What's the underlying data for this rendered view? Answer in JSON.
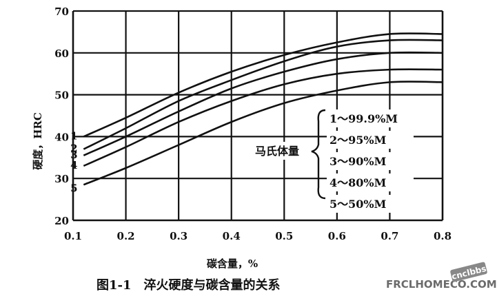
{
  "chart_data": {
    "type": "line",
    "xlabel": "碳含量，%",
    "ylabel": "硬度，HRC",
    "xlim": [
      0.1,
      0.8
    ],
    "ylim": [
      20,
      70
    ],
    "x_ticks": [
      "0.1",
      "0.2",
      "0.3",
      "0.4",
      "0.5",
      "0.6",
      "0.7",
      "0.8"
    ],
    "y_ticks": [
      "20",
      "30",
      "40",
      "50",
      "60",
      "70"
    ],
    "grid": true,
    "legend_title": "马氏体量",
    "series": [
      {
        "name": "1～99.9%M",
        "label": "1",
        "x": [
          0.12,
          0.2,
          0.3,
          0.4,
          0.5,
          0.6,
          0.7,
          0.8
        ],
        "y": [
          40,
          44.5,
          50.5,
          55.5,
          59.5,
          62.5,
          64.5,
          64.5
        ]
      },
      {
        "name": "2～95%M",
        "label": "2",
        "x": [
          0.12,
          0.2,
          0.3,
          0.4,
          0.5,
          0.6,
          0.7,
          0.8
        ],
        "y": [
          37,
          42,
          48.5,
          53.5,
          58,
          61.5,
          63,
          63
        ]
      },
      {
        "name": "3～90%M",
        "label": "3",
        "x": [
          0.12,
          0.2,
          0.3,
          0.4,
          0.5,
          0.6,
          0.7,
          0.8
        ],
        "y": [
          35.5,
          40,
          46,
          51.5,
          55.5,
          58.5,
          60,
          60
        ]
      },
      {
        "name": "4～80%M",
        "label": "4",
        "x": [
          0.12,
          0.2,
          0.3,
          0.4,
          0.5,
          0.6,
          0.7,
          0.8
        ],
        "y": [
          33,
          37.5,
          43.5,
          48.5,
          52.5,
          55,
          56,
          56
        ]
      },
      {
        "name": "5～50%M",
        "label": "5",
        "x": [
          0.12,
          0.2,
          0.3,
          0.4,
          0.5,
          0.6,
          0.7,
          0.8
        ],
        "y": [
          28.5,
          32.5,
          38,
          43.5,
          48,
          51,
          53,
          53
        ]
      }
    ]
  },
  "caption": "图1-1　淬火硬度与碳含量的关系",
  "watermark": "FRCLHOMECO.COM",
  "watermark_badge": "cnclbbs",
  "colors": {
    "line": "#111111",
    "grid": "#111111",
    "background": "#ffffff"
  }
}
